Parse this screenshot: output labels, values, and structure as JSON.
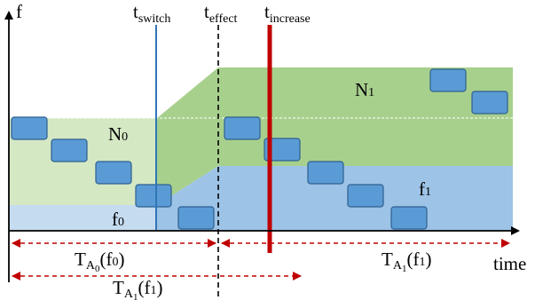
{
  "axes": {
    "y_label": "f",
    "x_label": "time"
  },
  "markers": {
    "t_switch": {
      "base": "t",
      "sub": "switch"
    },
    "t_effect": {
      "base": "t",
      "sub": "effect"
    },
    "t_increase": {
      "base": "t",
      "sub": "increase"
    }
  },
  "regions": {
    "n0": {
      "base": "N",
      "sub": "0"
    },
    "n1": {
      "base": "N",
      "sub": "1"
    },
    "f0": {
      "base": "f",
      "sub": "0"
    },
    "f1": {
      "base": "f",
      "sub": "1"
    }
  },
  "intervals": {
    "ta0_f0": {
      "T": "T",
      "A": "A",
      "a_sub": "0",
      "arg": "(f",
      "arg_sub": "0",
      "close": ")"
    },
    "ta1_f1_right": {
      "T": "T",
      "A": "A",
      "a_sub": "1",
      "arg": "(f",
      "arg_sub": "1",
      "close": ")"
    },
    "ta1_f1_bottom": {
      "T": "T",
      "A": "A",
      "a_sub": "1",
      "arg": "(f",
      "arg_sub": "1",
      "close": ")"
    }
  },
  "colors": {
    "light_green": "#d5e8c4",
    "green": "#a8d08d",
    "light_blue": "#c5dbf0",
    "blue": "#9dc3e6",
    "packet_fill": "#5b9bd5",
    "packet_stroke": "#2e5f8f",
    "switch_line": "#2e75b6",
    "increase_line": "#c00000",
    "interval_arrow": "#c00000"
  }
}
